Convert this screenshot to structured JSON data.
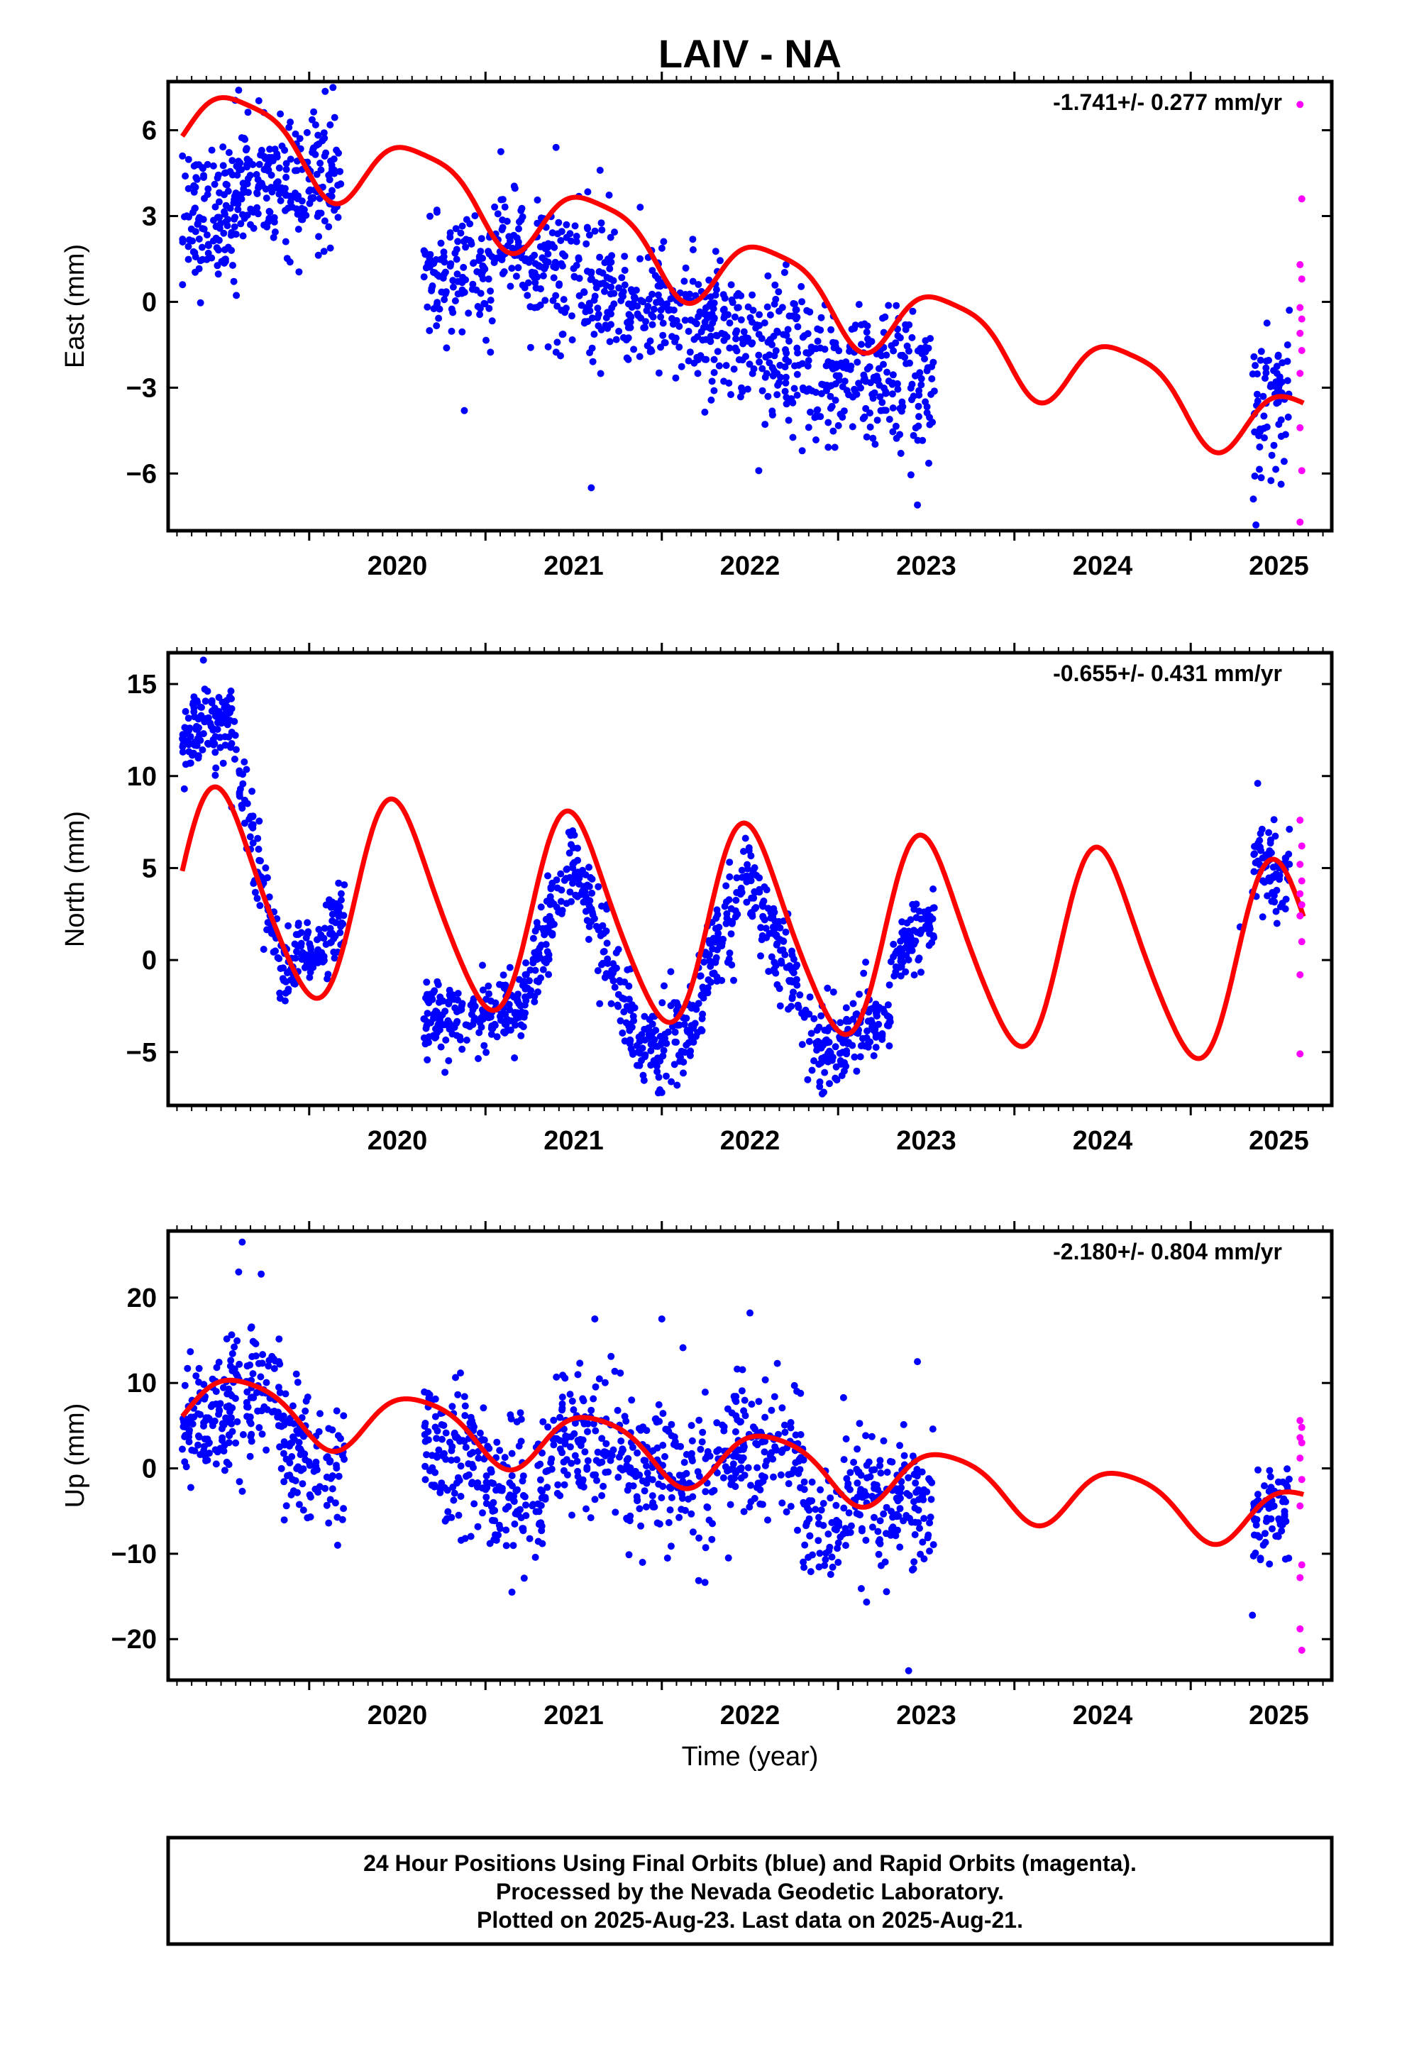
{
  "chart_data": {
    "title": "LAIV - NA",
    "xlabel": "Time (year)",
    "xlim": [
      2019.2,
      2025.8
    ],
    "xticks": [
      2020,
      2021,
      2022,
      2023,
      2024,
      2025
    ],
    "type": "scatter",
    "colors": {
      "final": "#0000ff",
      "rapid": "#ff00ff",
      "model": "#ff0000"
    },
    "panels": [
      {
        "name": "East",
        "ylabel": "East (mm)",
        "ylim": [
          -8,
          7.7
        ],
        "yticks": [
          6,
          3,
          0,
          -3,
          -6
        ],
        "ytick_labels": [
          "6",
          "3",
          "0",
          "−3",
          "−6"
        ],
        "rate_text": "-1.741+/- 0.277 mm/yr",
        "model": {
          "a0": 1.8,
          "slope": -1.741,
          "t0": 2022.0,
          "ann_amp": 1.3,
          "ann_phase": 2019.63,
          "semi_amp": 0.3,
          "semi_phase": 2019.9
        },
        "data_clusters": [
          {
            "t": [
              2019.28,
              2019.58
            ],
            "center": 3.0,
            "slope": 3.0,
            "noise": 1.2,
            "count": 120
          },
          {
            "t": [
              2019.58,
              2020.18
            ],
            "center": 4.2,
            "slope": 0.5,
            "noise": 1.1,
            "count": 220
          },
          {
            "t": [
              2020.65,
              2021.05
            ],
            "center": 0.8,
            "slope": 0.0,
            "noise": 1.0,
            "count": 120
          },
          {
            "t": [
              2021.05,
              2021.4
            ],
            "center": 1.6,
            "slope": -2.0,
            "noise": 1.1,
            "count": 110
          },
          {
            "t": [
              2021.4,
              2021.75
            ],
            "center": 0.6,
            "slope": 0.0,
            "noise": 1.3,
            "count": 110
          },
          {
            "t": [
              2021.75,
              2022.45
            ],
            "center": -0.5,
            "slope": -1.5,
            "noise": 1.1,
            "count": 220
          },
          {
            "t": [
              2022.45,
              2022.85
            ],
            "center": -1.8,
            "slope": 0.0,
            "noise": 1.3,
            "count": 130
          },
          {
            "t": [
              2022.85,
              2023.55
            ],
            "center": -2.8,
            "slope": -0.5,
            "noise": 1.2,
            "count": 220
          },
          {
            "t": [
              2025.35,
              2025.56
            ],
            "center": -3.5,
            "slope": 4.0,
            "noise": 1.3,
            "count": 70
          }
        ],
        "outliers": [
          [
            2021.4,
            5.4
          ],
          [
            2021.6,
            -6.5
          ],
          [
            2020.88,
            -3.8
          ],
          [
            2025.37,
            -7.8
          ],
          [
            2023.45,
            -7.1
          ],
          [
            2019.6,
            7.4
          ],
          [
            2021.65,
            4.6
          ],
          [
            2022.55,
            -5.9
          ]
        ],
        "rapid": [
          [
            2025.62,
            6.9
          ],
          [
            2025.63,
            3.6
          ],
          [
            2025.62,
            1.3
          ],
          [
            2025.63,
            0.8
          ],
          [
            2025.62,
            -0.2
          ],
          [
            2025.63,
            -0.6
          ],
          [
            2025.62,
            -1.1
          ],
          [
            2025.63,
            -1.7
          ],
          [
            2025.62,
            -2.5
          ],
          [
            2025.62,
            -4.4
          ],
          [
            2025.63,
            -5.9
          ],
          [
            2025.62,
            -7.7
          ]
        ]
      },
      {
        "name": "North",
        "ylabel": "North (mm)",
        "ylim": [
          -7.9,
          16.7
        ],
        "yticks": [
          15,
          10,
          5,
          0,
          -5
        ],
        "ytick_labels": [
          "15",
          "10",
          "5",
          "0",
          "−5"
        ],
        "rate_text": "-0.655+/- 0.431 mm/yr",
        "model": {
          "a0": 2.0,
          "slope": -0.655,
          "t0": 2022.0,
          "ann_amp": 5.4,
          "ann_phase": 2019.5,
          "semi_amp": 0.7,
          "semi_phase": 2019.4
        },
        "data_clusters": [
          {
            "t": [
              2019.28,
              2019.55
            ],
            "center": 12.5,
            "slope": 3.0,
            "noise": 1.0,
            "count": 110
          },
          {
            "t": [
              2019.55,
              2019.85
            ],
            "center": 6.0,
            "slope": -45.0,
            "noise": 1.2,
            "count": 80
          },
          {
            "t": [
              2019.85,
              2020.2
            ],
            "center": 0.7,
            "slope": 8.0,
            "noise": 1.0,
            "count": 120
          },
          {
            "t": [
              2020.65,
              2021.2
            ],
            "center": -3.0,
            "slope": 0.0,
            "noise": 1.0,
            "count": 180
          },
          {
            "t": [
              2021.2,
              2021.5
            ],
            "center": 1.5,
            "slope": 28.0,
            "noise": 1.2,
            "count": 110
          },
          {
            "t": [
              2021.5,
              2021.85
            ],
            "center": 0.5,
            "slope": -27.0,
            "noise": 1.2,
            "count": 110
          },
          {
            "t": [
              2021.85,
              2022.2
            ],
            "center": -4.5,
            "slope": 4.0,
            "noise": 1.2,
            "count": 110
          },
          {
            "t": [
              2022.2,
              2022.5
            ],
            "center": 1.5,
            "slope": 24.0,
            "noise": 1.2,
            "count": 100
          },
          {
            "t": [
              2022.5,
              2022.85
            ],
            "center": 0.5,
            "slope": -25.0,
            "noise": 1.2,
            "count": 110
          },
          {
            "t": [
              2022.85,
              2023.3
            ],
            "center": -4.0,
            "slope": 6.0,
            "noise": 1.2,
            "count": 150
          },
          {
            "t": [
              2023.3,
              2023.55
            ],
            "center": 1.2,
            "slope": 10.0,
            "noise": 1.0,
            "count": 80
          },
          {
            "t": [
              2025.35,
              2025.56
            ],
            "center": 5.0,
            "slope": 0.0,
            "noise": 1.0,
            "count": 70
          }
        ],
        "outliers": [
          [
            2025.38,
            9.6
          ],
          [
            2019.4,
            16.3
          ],
          [
            2025.28,
            1.8
          ],
          [
            2022.0,
            -7.2
          ],
          [
            2020.77,
            -6.1
          ]
        ],
        "rapid": [
          [
            2025.62,
            7.6
          ],
          [
            2025.63,
            6.2
          ],
          [
            2025.62,
            5.2
          ],
          [
            2025.63,
            4.3
          ],
          [
            2025.62,
            3.6
          ],
          [
            2025.63,
            3.0
          ],
          [
            2025.62,
            2.4
          ],
          [
            2025.63,
            1.0
          ],
          [
            2025.62,
            -0.8
          ],
          [
            2025.62,
            -5.1
          ]
        ]
      },
      {
        "name": "Up",
        "ylabel": "Up (mm)",
        "ylim": [
          -24.8,
          27.8
        ],
        "yticks": [
          20,
          10,
          0,
          -10,
          -20
        ],
        "ytick_labels": [
          "20",
          "10",
          "0",
          "−10",
          "−20"
        ],
        "rate_text": "-2.180+/- 0.804 mm/yr",
        "model": {
          "a0": 2.0,
          "slope": -2.18,
          "t0": 2022.0,
          "ann_amp": 3.5,
          "ann_phase": 2019.62,
          "semi_amp": 0.6,
          "semi_phase": 2019.9
        },
        "data_clusters": [
          {
            "t": [
              2019.28,
              2019.55
            ],
            "center": 5.5,
            "slope": 4.0,
            "noise": 3.5,
            "count": 110
          },
          {
            "t": [
              2019.55,
              2019.85
            ],
            "center": 8.5,
            "slope": 0.0,
            "noise": 4.0,
            "count": 100
          },
          {
            "t": [
              2019.85,
              2020.2
            ],
            "center": 1.0,
            "slope": -10.0,
            "noise": 4.0,
            "count": 110
          },
          {
            "t": [
              2020.65,
              2021.0
            ],
            "center": 1.5,
            "slope": -8.0,
            "noise": 4.0,
            "count": 120
          },
          {
            "t": [
              2021.0,
              2021.35
            ],
            "center": -3.0,
            "slope": 0.0,
            "noise": 4.0,
            "count": 110
          },
          {
            "t": [
              2021.35,
              2021.8
            ],
            "center": 3.0,
            "slope": 0.0,
            "noise": 4.5,
            "count": 130
          },
          {
            "t": [
              2021.8,
              2022.3
            ],
            "center": -1.0,
            "slope": 0.0,
            "noise": 4.0,
            "count": 150
          },
          {
            "t": [
              2022.3,
              2022.8
            ],
            "center": 2.0,
            "slope": 0.0,
            "noise": 4.0,
            "count": 150
          },
          {
            "t": [
              2022.8,
              2023.55
            ],
            "center": -4.5,
            "slope": 3.0,
            "noise": 4.0,
            "count": 220
          },
          {
            "t": [
              2025.35,
              2025.56
            ],
            "center": -5.5,
            "slope": 0.0,
            "noise": 3.5,
            "count": 70
          }
        ],
        "outliers": [
          [
            2019.62,
            26.5
          ],
          [
            2019.6,
            23.0
          ],
          [
            2021.62,
            17.5
          ],
          [
            2022.0,
            17.5
          ],
          [
            2022.5,
            18.2
          ],
          [
            2023.45,
            12.5
          ],
          [
            2023.4,
            -23.7
          ],
          [
            2021.15,
            -14.5
          ],
          [
            2025.35,
            -17.2
          ]
        ],
        "rapid": [
          [
            2025.62,
            5.6
          ],
          [
            2025.63,
            4.8
          ],
          [
            2025.62,
            3.6
          ],
          [
            2025.63,
            3.0
          ],
          [
            2025.62,
            1.2
          ],
          [
            2025.63,
            -1.3
          ],
          [
            2025.62,
            -4.4
          ],
          [
            2025.63,
            -11.3
          ],
          [
            2025.62,
            -12.8
          ],
          [
            2025.62,
            -18.8
          ],
          [
            2025.63,
            -21.3
          ]
        ]
      }
    ]
  },
  "footer": {
    "line1": "24 Hour Positions Using Final Orbits (blue) and Rapid Orbits (magenta).",
    "line2": "Processed by the Nevada Geodetic Laboratory.",
    "line3": "Plotted on 2025-Aug-23. Last data on 2025-Aug-21."
  }
}
